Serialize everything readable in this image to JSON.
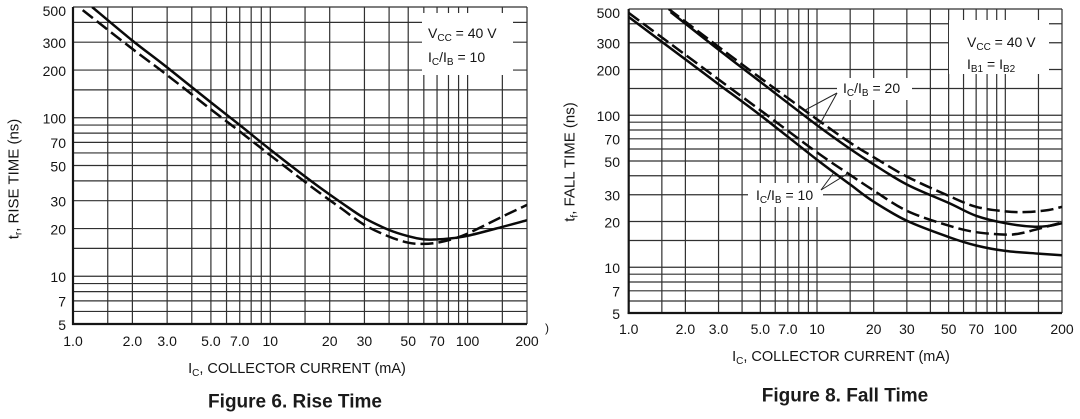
{
  "chart_data": [
    {
      "type": "line",
      "title": "Figure 6. Rise Time",
      "xlabel": {
        "main": "I",
        "sub": "C",
        "rest": ", COLLECTOR CURRENT (mA)"
      },
      "ylabel": {
        "main": "t",
        "sub": "r",
        "rest": ", RISE TIME (ns)"
      },
      "xscale": "log",
      "yscale": "log",
      "xlim": [
        1,
        200
      ],
      "ylim": [
        5,
        500
      ],
      "xticks": [
        1,
        2,
        3,
        5,
        7,
        10,
        20,
        30,
        50,
        70,
        100,
        200
      ],
      "xtick_labels": [
        "1.0",
        "2.0",
        "3.0",
        "5.0",
        "7.0",
        "10",
        "20",
        "30",
        "50",
        "70",
        "100",
        "200"
      ],
      "yticks": [
        5,
        7,
        10,
        20,
        30,
        50,
        70,
        100,
        200,
        300,
        500
      ],
      "ytick_labels": [
        "5",
        "7",
        "10",
        "20",
        "30",
        "50",
        "70",
        "100",
        "200",
        "300",
        "500"
      ],
      "grid": true,
      "x_gridlines": [
        1,
        1.5,
        2,
        3,
        4,
        5,
        6,
        7,
        8,
        9,
        10,
        15,
        20,
        30,
        40,
        50,
        60,
        70,
        80,
        90,
        100,
        150,
        200
      ],
      "y_gridlines": [
        5,
        6,
        7,
        8,
        9,
        10,
        15,
        20,
        30,
        40,
        50,
        60,
        70,
        80,
        90,
        100,
        150,
        200,
        300,
        400,
        500
      ],
      "annotation_placement": "top-right",
      "annotation": [
        {
          "main": "V",
          "sub": "CC",
          "rest": " = 40 V"
        },
        {
          "main": "I",
          "sub": "C",
          "mid": "/I",
          "sub2": "B",
          "rest": " = 10"
        }
      ],
      "line_color": "#0a0a0a",
      "series": [
        {
          "style": "solid",
          "points": [
            [
              1.25,
              500
            ],
            [
              2,
              307
            ],
            [
              3,
              208
            ],
            [
              5,
              125
            ],
            [
              7,
              90
            ],
            [
              10,
              63
            ],
            [
              16.5,
              39
            ],
            [
              22.7,
              29.4
            ],
            [
              30,
              23.3
            ],
            [
              40,
              19.6
            ],
            [
              50,
              17.9
            ],
            [
              60,
              17.1
            ],
            [
              70,
              17.1
            ],
            [
              80,
              17.3
            ],
            [
              100,
              18.0
            ],
            [
              150,
              20.5
            ],
            [
              200,
              22.6
            ]
          ]
        },
        {
          "style": "dashed",
          "points": [
            [
              1.12,
              478
            ],
            [
              2,
              272
            ],
            [
              3,
              186
            ],
            [
              5,
              113
            ],
            [
              7,
              82
            ],
            [
              10,
              58
            ],
            [
              16.5,
              36
            ],
            [
              22.7,
              27.0
            ],
            [
              30,
              21.1
            ],
            [
              40,
              17.8
            ],
            [
              50,
              16.3
            ],
            [
              60,
              16.0
            ],
            [
              70,
              16.3
            ],
            [
              80,
              16.9
            ],
            [
              100,
              18.6
            ],
            [
              150,
              23.8
            ],
            [
              200,
              28.2
            ]
          ]
        }
      ]
    },
    {
      "type": "line",
      "title": "Figure 8. Fall Time",
      "xlabel": {
        "main": "I",
        "sub": "C",
        "rest": ", COLLECTOR CURRENT (mA)"
      },
      "ylabel": {
        "main": "t",
        "sub": "f",
        "rest": ", FALL TIME (ns)"
      },
      "xscale": "log",
      "yscale": "log",
      "xlim": [
        1,
        200
      ],
      "ylim": [
        5,
        500
      ],
      "xticks": [
        1,
        2,
        3,
        5,
        7,
        10,
        20,
        30,
        50,
        70,
        100,
        200
      ],
      "xtick_labels": [
        "1.0",
        "2.0",
        "3.0",
        "5.0",
        "7.0",
        "10",
        "20",
        "30",
        "50",
        "70",
        "100",
        "200"
      ],
      "yticks": [
        5,
        7,
        10,
        20,
        30,
        50,
        70,
        100,
        200,
        300,
        500
      ],
      "ytick_labels": [
        "5",
        "7",
        "10",
        "20",
        "30",
        "50",
        "70",
        "100",
        "200",
        "300",
        "500"
      ],
      "grid": true,
      "x_gridlines": [
        1,
        1.5,
        2,
        3,
        4,
        5,
        6,
        7,
        8,
        9,
        10,
        15,
        20,
        30,
        40,
        50,
        60,
        70,
        80,
        90,
        100,
        150,
        200
      ],
      "y_gridlines": [
        5,
        6,
        7,
        8,
        9,
        10,
        15,
        20,
        30,
        40,
        50,
        60,
        70,
        80,
        90,
        100,
        150,
        200,
        300,
        400,
        500
      ],
      "annotation_placement": "top-right",
      "annotation": [
        {
          "main": "V",
          "sub": "CC",
          "rest": " = 40 V"
        },
        {
          "main": "I",
          "sub": "B1",
          "mid": " = I",
          "sub2": "B2"
        }
      ],
      "curve_labels": [
        {
          "main": "I",
          "sub": "C",
          "mid": "/I",
          "sub2": "B",
          "rest": " = 20",
          "ratio": 20
        },
        {
          "main": "I",
          "sub": "C",
          "mid": "/I",
          "sub2": "B",
          "rest": " = 10",
          "ratio": 10
        }
      ],
      "line_color": "#0a0a0a",
      "series": [
        {
          "ratio": 20,
          "style": "dashed",
          "points": [
            [
              1.63,
              500
            ],
            [
              3,
              282
            ],
            [
              5,
              176
            ],
            [
              10,
              94
            ],
            [
              15,
              66
            ],
            [
              20,
              53
            ],
            [
              30,
              39.5
            ],
            [
              50,
              29.5
            ],
            [
              70,
              25
            ],
            [
              100,
              23.3
            ],
            [
              130,
              23.1
            ],
            [
              170,
              23.8
            ],
            [
              200,
              25
            ]
          ]
        },
        {
          "ratio": 20,
          "style": "solid",
          "points": [
            [
              1.67,
              478
            ],
            [
              3,
              270
            ],
            [
              5,
              166
            ],
            [
              10,
              86
            ],
            [
              15,
              60
            ],
            [
              20,
              47.5
            ],
            [
              30,
              35
            ],
            [
              50,
              26.5
            ],
            [
              70,
              21.8
            ],
            [
              100,
              19.5
            ],
            [
              140,
              18.5
            ],
            [
              170,
              18.7
            ],
            [
              200,
              19.5
            ]
          ]
        },
        {
          "ratio": 10,
          "style": "dashed",
          "points": [
            [
              1,
              471
            ],
            [
              2,
              250
            ],
            [
              3,
              172
            ],
            [
              5,
              108
            ],
            [
              10,
              57
            ],
            [
              15,
              40.5
            ],
            [
              20,
              32
            ],
            [
              30,
              23.5
            ],
            [
              50,
              18.8
            ],
            [
              70,
              17.0
            ],
            [
              100,
              16.4
            ],
            [
              120,
              16.7
            ],
            [
              150,
              17.9
            ],
            [
              200,
              19.7
            ]
          ]
        },
        {
          "ratio": 10,
          "style": "solid",
          "points": [
            [
              1,
              443
            ],
            [
              2,
              233
            ],
            [
              3,
              160
            ],
            [
              5,
              100
            ],
            [
              10,
              51
            ],
            [
              15,
              35
            ],
            [
              20,
              27
            ],
            [
              30,
              20.2
            ],
            [
              50,
              15.8
            ],
            [
              70,
              13.9
            ],
            [
              100,
              12.8
            ],
            [
              150,
              12.3
            ],
            [
              200,
              12.0
            ]
          ]
        }
      ]
    }
  ],
  "margin_fragment": ")"
}
